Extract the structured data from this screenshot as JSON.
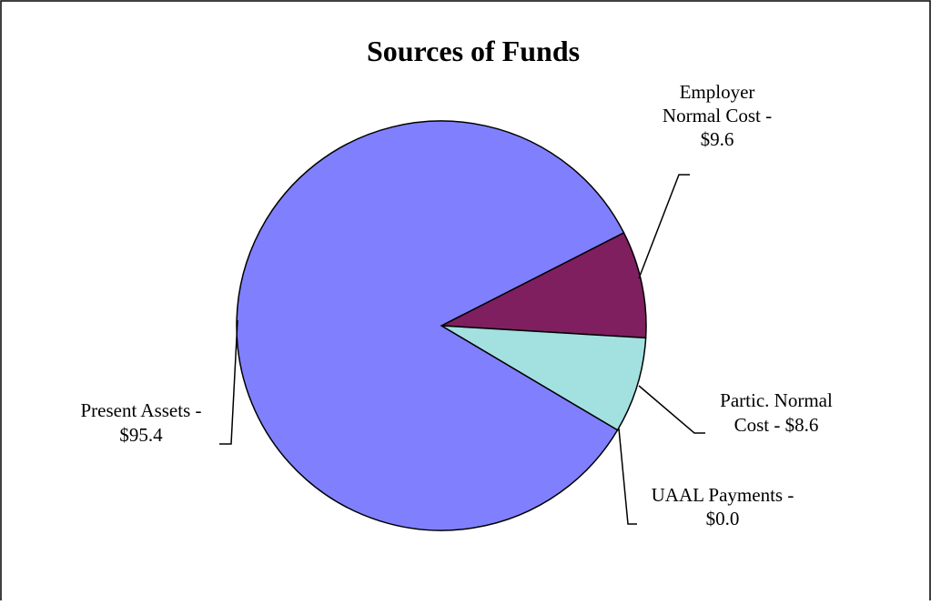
{
  "chart_data": {
    "type": "pie",
    "title": "Sources of Funds",
    "slices": [
      {
        "label_lines": [
          "Present Assets -",
          "$95.4"
        ],
        "value": 95.4,
        "color": "#8080ff"
      },
      {
        "label_lines": [
          "Employer",
          "Normal Cost -",
          "$9.6"
        ],
        "value": 9.6,
        "color": "#7f1f5f"
      },
      {
        "label_lines": [
          "Partic. Normal",
          "Cost - $8.6"
        ],
        "value": 8.6,
        "color": "#a3e0e0"
      },
      {
        "label_lines": [
          "UAAL Payments -",
          "$0.0"
        ],
        "value": 0.0,
        "color": "#c0c0c0"
      }
    ],
    "legend": "none"
  }
}
